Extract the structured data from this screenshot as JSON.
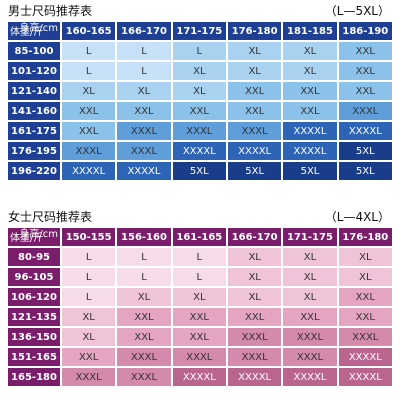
{
  "men": {
    "title": "男士尺码推荐表",
    "range": "（L—5XL）",
    "corner_top": "身高/cm",
    "corner_bottom": "体重/斤",
    "heights": [
      "160-165",
      "166-170",
      "171-175",
      "176-180",
      "181-185",
      "186-190"
    ],
    "weights": [
      "85-100",
      "101-120",
      "121-140",
      "141-160",
      "161-175",
      "176-195",
      "196-220"
    ],
    "sizes": [
      [
        "L",
        "L",
        "L",
        "XL",
        "XL",
        "XXL"
      ],
      [
        "L",
        "L",
        "XL",
        "XL",
        "XL",
        "XXL"
      ],
      [
        "XL",
        "XL",
        "XL",
        "XXL",
        "XXL",
        "XXL"
      ],
      [
        "XXL",
        "XXL",
        "XXL",
        "XXL",
        "XXL",
        "XXXL"
      ],
      [
        "XXL",
        "XXXL",
        "XXXL",
        "XXXL",
        "XXXXL",
        "XXXXL"
      ],
      [
        "XXXL",
        "XXXL",
        "XXXXL",
        "XXXXL",
        "XXXXL",
        "5XL"
      ],
      [
        "XXXXL",
        "XXXXL",
        "5XL",
        "5XL",
        "5XL",
        "5XL"
      ]
    ],
    "colors": {
      "header": "#1e3f94",
      "cells": [
        [
          "#c6e0f8",
          "#c6e0f8",
          "#a8d2f0",
          "#a8d2f0",
          "#a8d2f0",
          "#8cc2ea"
        ],
        [
          "#c6e0f8",
          "#c6e0f8",
          "#a8d2f0",
          "#a8d2f0",
          "#a8d2f0",
          "#8cc2ea"
        ],
        [
          "#a8d2f0",
          "#a8d2f0",
          "#a8d2f0",
          "#8cc2ea",
          "#8cc2ea",
          "#8cc2ea"
        ],
        [
          "#8cc2ea",
          "#8cc2ea",
          "#8cc2ea",
          "#8cc2ea",
          "#8cc2ea",
          "#5f9ed8"
        ],
        [
          "#8cc2ea",
          "#5f9ed8",
          "#5f9ed8",
          "#5f9ed8",
          "#2e64b5",
          "#2e64b5"
        ],
        [
          "#5f9ed8",
          "#5f9ed8",
          "#2e64b5",
          "#2e64b5",
          "#2e64b5",
          "#1a3d8a"
        ],
        [
          "#2e64b5",
          "#2e64b5",
          "#1a3d8a",
          "#1a3d8a",
          "#1a3d8a",
          "#1a3d8a"
        ]
      ]
    }
  },
  "women": {
    "title": "女士尺码推荐表",
    "range": "（L—4XL）",
    "corner_top": "身高/cm",
    "corner_bottom": "体重/斤",
    "heights": [
      "150-155",
      "156-160",
      "161-165",
      "166-170",
      "171-175",
      "176-180"
    ],
    "weights": [
      "80-95",
      "96-105",
      "106-120",
      "121-135",
      "136-150",
      "151-165",
      "165-180"
    ],
    "sizes": [
      [
        "L",
        "L",
        "L",
        "XL",
        "XL",
        "XL"
      ],
      [
        "L",
        "L",
        "L",
        "XL",
        "XL",
        "XL"
      ],
      [
        "L",
        "XL",
        "XL",
        "XL",
        "XL",
        "XXL"
      ],
      [
        "XL",
        "XXL",
        "XXL",
        "XXL",
        "XXL",
        "XXL"
      ],
      [
        "XL",
        "XXL",
        "XXL",
        "XXXL",
        "XXXL",
        "XXXL"
      ],
      [
        "XXL",
        "XXXL",
        "XXXL",
        "XXXL",
        "XXXL",
        "XXXXL"
      ],
      [
        "XXXL",
        "XXXL",
        "XXXXL",
        "XXXXL",
        "XXXXL",
        "XXXXL"
      ]
    ],
    "colors": {
      "header": "#7a1e6b",
      "cells": [
        [
          "#f6dbe8",
          "#f6dbe8",
          "#f6dbe8",
          "#f0c4d8",
          "#f0c4d8",
          "#f0c4d8"
        ],
        [
          "#f6dbe8",
          "#f6dbe8",
          "#f6dbe8",
          "#f0c4d8",
          "#f0c4d8",
          "#f0c4d8"
        ],
        [
          "#f6dbe8",
          "#f0c4d8",
          "#f0c4d8",
          "#f0c4d8",
          "#f0c4d8",
          "#e3a5c2"
        ],
        [
          "#f0c4d8",
          "#e3a5c2",
          "#e3a5c2",
          "#e3a5c2",
          "#e3a5c2",
          "#e3a5c2"
        ],
        [
          "#f0c4d8",
          "#e3a5c2",
          "#e3a5c2",
          "#d48aad",
          "#d48aad",
          "#d48aad"
        ],
        [
          "#e3a5c2",
          "#d48aad",
          "#d48aad",
          "#d48aad",
          "#d48aad",
          "#b9658f"
        ],
        [
          "#d48aad",
          "#d48aad",
          "#b9658f",
          "#b9658f",
          "#b9658f",
          "#b9658f"
        ]
      ]
    }
  }
}
